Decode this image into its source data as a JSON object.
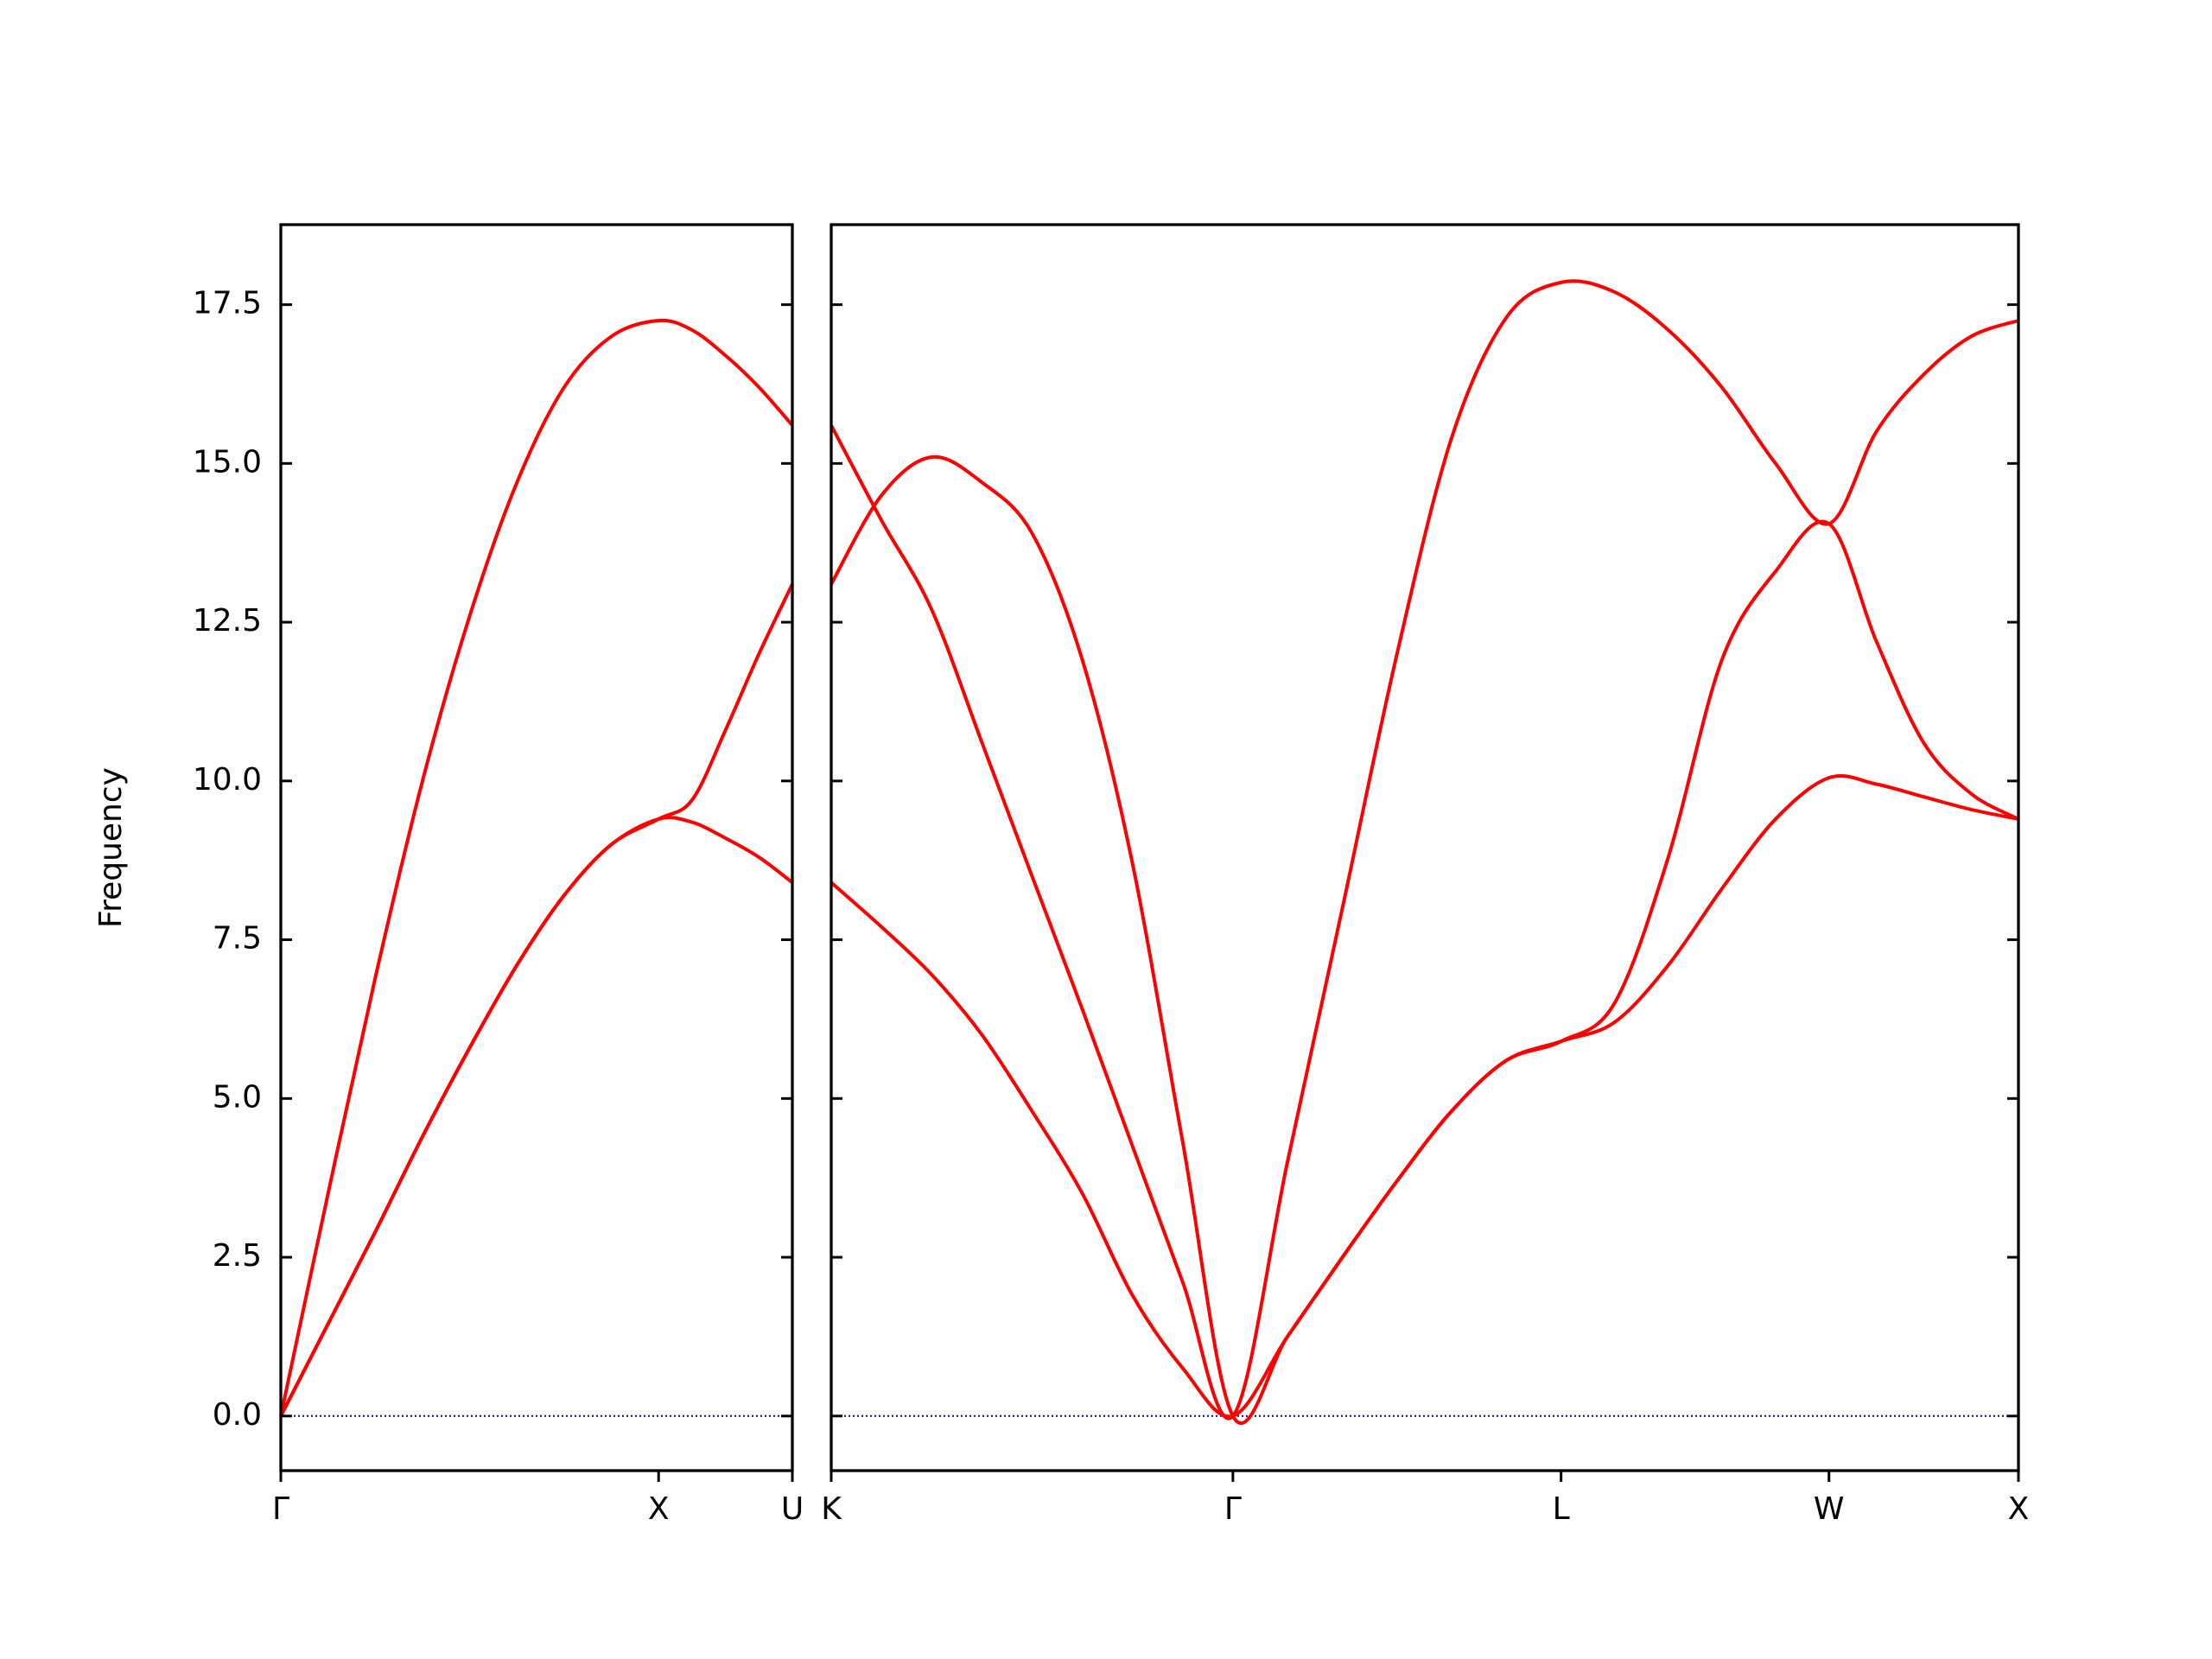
{
  "chart_data": [
    {
      "type": "line",
      "ylabel": "Frequency",
      "x": [
        0,
        0.125,
        0.25,
        0.375,
        0.5,
        0.625,
        0.75,
        0.875,
        1,
        1.0885,
        1.177,
        1.2655,
        1.354
      ],
      "series": [
        {
          "color": "#ff0000",
          "values": [
            0,
            1.45,
            2.9,
            4.4,
            5.8,
            7.1,
            8.2,
            9.0,
            9.4,
            9.35,
            9.1,
            8.8,
            8.4
          ]
        },
        {
          "color": "#ff0000",
          "values": [
            0,
            1.45,
            2.9,
            4.4,
            5.8,
            7.1,
            8.2,
            9.0,
            9.4,
            9.7,
            10.8,
            12.0,
            13.1
          ]
        },
        {
          "color": "#ff0000",
          "values": [
            0,
            3.5,
            6.9,
            10.0,
            12.6,
            14.7,
            16.2,
            17.0,
            17.25,
            17.1,
            16.7,
            16.2,
            15.6
          ]
        }
      ],
      "xlim": [
        0,
        1.354
      ],
      "xticks": [
        {
          "value": 0,
          "label": "Γ"
        },
        {
          "value": 1,
          "label": "X"
        },
        {
          "value": 1.354,
          "label": "U"
        }
      ],
      "ylim": [
        -0.86,
        18.76
      ],
      "yticks": [
        {
          "value": 0,
          "label": "0.0"
        },
        2.5,
        {
          "value": 5,
          "label": "5.0"
        },
        7.5,
        {
          "value": 10,
          "label": "10.0"
        },
        12.5,
        {
          "value": 15,
          "label": "15.0"
        },
        17.5
      ],
      "ytick_labels": true,
      "hline": 0,
      "hline_color": "#0000cc"
    },
    {
      "type": "line",
      "x": [
        1.354,
        1.487,
        1.619,
        1.752,
        1.884,
        2.017,
        2.149,
        2.282,
        2.414,
        2.558,
        2.703,
        2.847,
        2.991,
        3.136,
        3.28,
        3.421,
        3.563,
        3.704,
        3.846,
        3.987,
        4.112,
        4.237,
        4.362,
        4.487
      ],
      "series": [
        {
          "color": "#ff0000",
          "values": [
            8.4,
            7.7,
            6.95,
            6.0,
            4.8,
            3.5,
            1.9,
            0.75,
            0,
            1.25,
            2.5,
            3.7,
            4.8,
            5.6,
            5.9,
            6.2,
            7.1,
            8.3,
            9.4,
            10.05,
            9.95,
            9.75,
            9.55,
            9.4
          ]
        },
        {
          "color": "#ff0000",
          "values": [
            13.1,
            14.5,
            15.1,
            14.7,
            13.9,
            11.9,
            8.7,
            4.3,
            0,
            1.25,
            2.5,
            3.7,
            4.8,
            5.6,
            5.9,
            6.5,
            8.8,
            11.9,
            13.3,
            14.05,
            12.2,
            10.6,
            9.8,
            9.4
          ]
        },
        {
          "color": "#ff0000",
          "values": [
            15.6,
            14.1,
            12.7,
            10.6,
            8.5,
            6.4,
            4.25,
            2.1,
            0,
            4.0,
            8.0,
            12.0,
            15.4,
            17.3,
            17.85,
            17.7,
            17.1,
            16.2,
            15.0,
            14.05,
            15.5,
            16.4,
            17.0,
            17.25
          ]
        }
      ],
      "xlim": [
        1.354,
        4.487
      ],
      "xticks": [
        {
          "value": 1.354,
          "label": "K"
        },
        {
          "value": 2.414,
          "label": "Γ"
        },
        {
          "value": 3.28,
          "label": "L"
        },
        {
          "value": 3.987,
          "label": "W"
        },
        {
          "value": 4.487,
          "label": "X"
        }
      ],
      "ylim": [
        -0.86,
        18.76
      ],
      "yticks": [
        {
          "value": 0,
          "label": "0.0"
        },
        2.5,
        {
          "value": 5,
          "label": "5.0"
        },
        7.5,
        {
          "value": 10,
          "label": "10.0"
        },
        12.5,
        {
          "value": 15,
          "label": "15.0"
        },
        17.5
      ],
      "ytick_labels": false,
      "hline": 0,
      "hline_color": "#0000cc"
    }
  ]
}
